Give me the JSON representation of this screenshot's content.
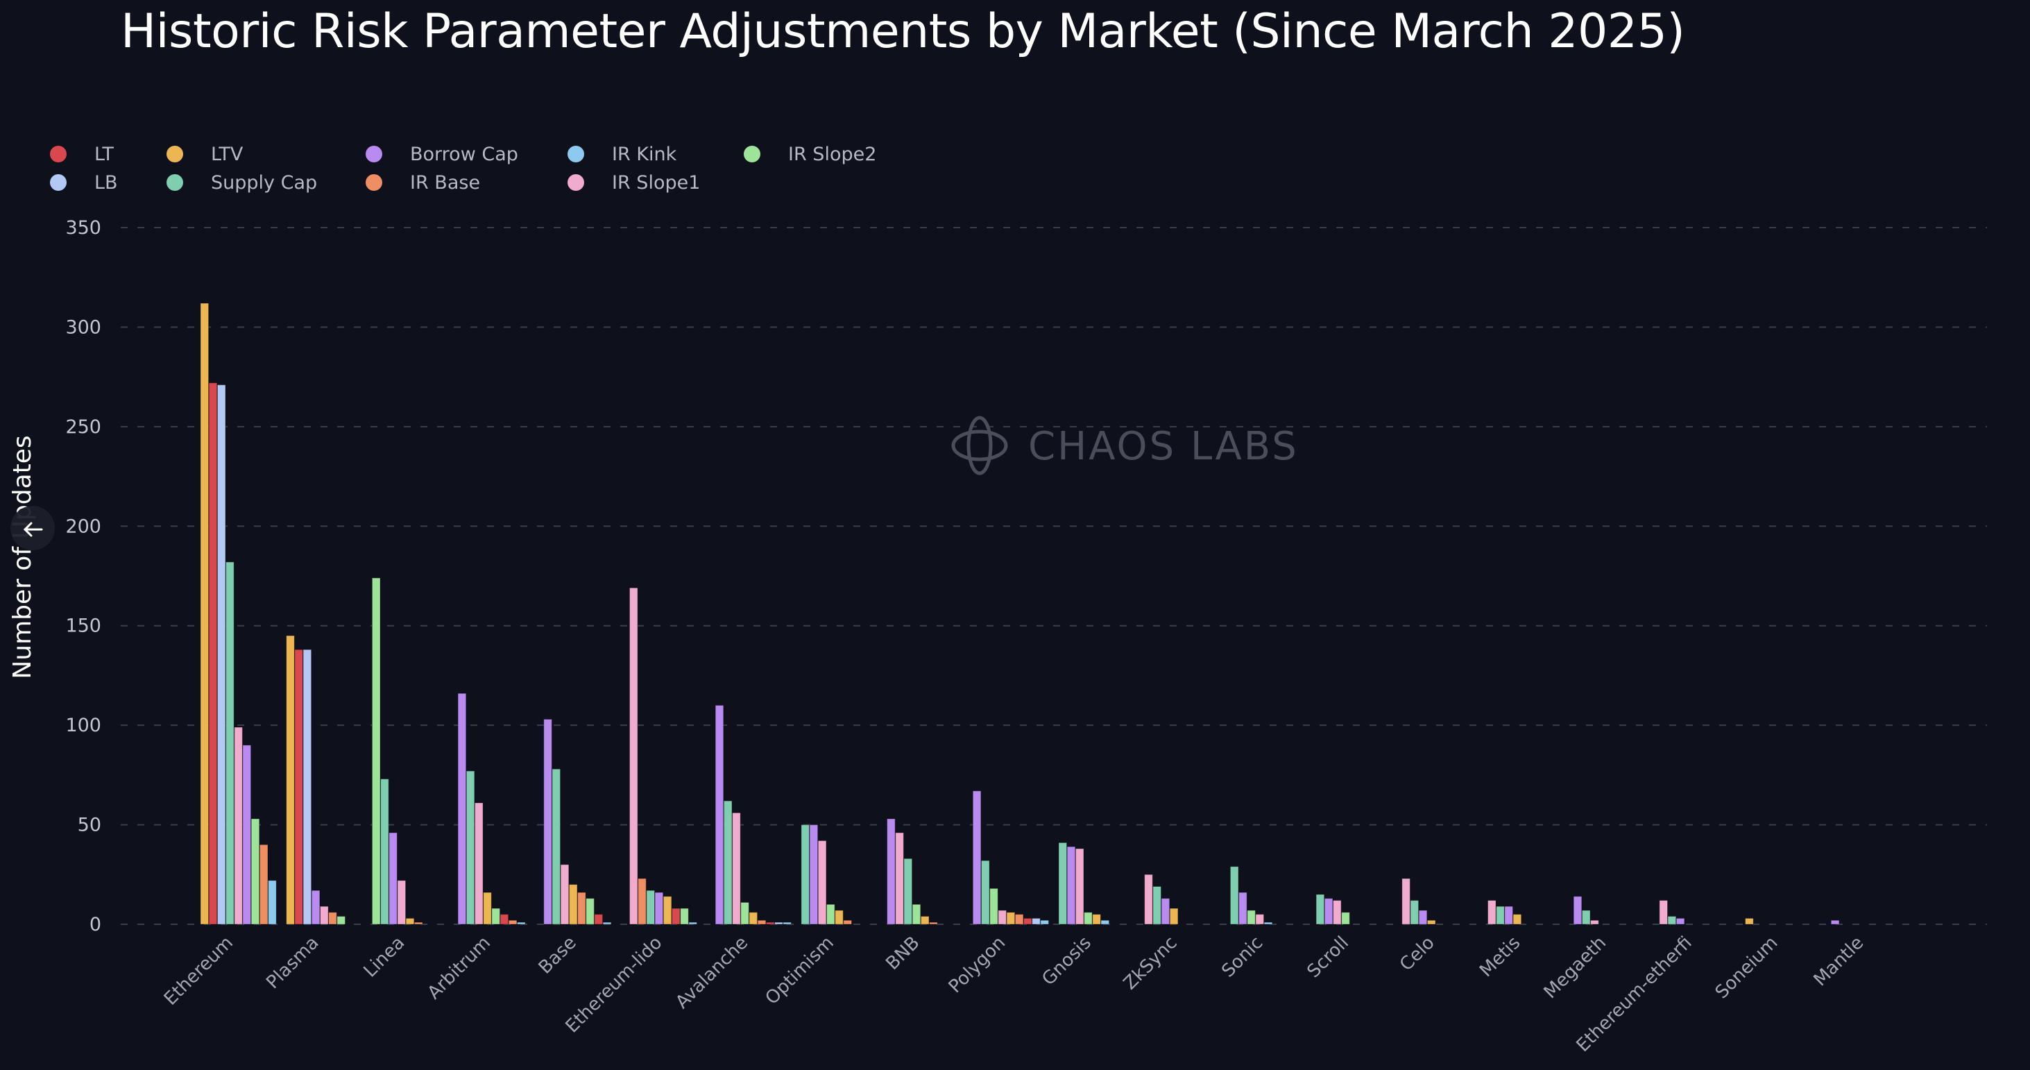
{
  "chart_data": {
    "type": "bar",
    "title": "Historic Risk Parameter Adjustments by Market (Since March 2025)",
    "xlabel": "",
    "ylabel": "Number of Updates",
    "ylim": [
      0,
      350
    ],
    "yticks": [
      0,
      50,
      100,
      150,
      200,
      250,
      300,
      350
    ],
    "grid": true,
    "legend_position": "top-left",
    "watermark": "CHAOS LABS",
    "categories": [
      "Ethereum",
      "Plasma",
      "Linea",
      "Arbitrum",
      "Base",
      "Ethereum-lido",
      "Avalanche",
      "Optimism",
      "BNB",
      "Polygon",
      "Gnosis",
      "ZkSync",
      "Sonic",
      "Scroll",
      "Celo",
      "Metis",
      "Megaeth",
      "Ethereum-etherfi",
      "Soneium",
      "Mantle"
    ],
    "series": [
      {
        "name": "LT",
        "color": "#d9474f",
        "values": [
          272,
          138,
          0,
          5,
          5,
          8,
          1,
          0,
          0,
          3,
          0,
          0,
          0,
          0,
          0,
          0,
          0,
          0,
          0,
          0
        ]
      },
      {
        "name": "LB",
        "color": "#b3c8f5",
        "values": [
          271,
          138,
          0,
          0,
          0,
          0,
          1,
          0,
          0,
          3,
          0,
          0,
          0,
          0,
          0,
          0,
          0,
          0,
          0,
          0
        ]
      },
      {
        "name": "LTV",
        "color": "#ecb753",
        "values": [
          312,
          145,
          3,
          16,
          20,
          14,
          6,
          7,
          4,
          6,
          5,
          8,
          0,
          0,
          2,
          5,
          0,
          0,
          3,
          0
        ]
      },
      {
        "name": "Supply Cap",
        "color": "#7fceb0",
        "values": [
          182,
          0,
          73,
          77,
          78,
          17,
          62,
          50,
          33,
          32,
          41,
          19,
          29,
          15,
          12,
          9,
          7,
          4,
          0,
          0
        ]
      },
      {
        "name": "Borrow Cap",
        "color": "#b98af0",
        "values": [
          90,
          17,
          46,
          116,
          103,
          16,
          110,
          50,
          53,
          67,
          39,
          13,
          16,
          13,
          7,
          9,
          14,
          3,
          0,
          2
        ]
      },
      {
        "name": "IR Base",
        "color": "#ef8e63",
        "values": [
          40,
          6,
          1,
          2,
          16,
          23,
          2,
          2,
          1,
          5,
          0,
          0,
          0,
          0,
          0,
          0,
          0,
          0,
          0,
          0
        ]
      },
      {
        "name": "IR Kink",
        "color": "#8ecaf0",
        "values": [
          22,
          0,
          0,
          1,
          1,
          1,
          1,
          0,
          0,
          2,
          2,
          0,
          1,
          0,
          0,
          0,
          0,
          0,
          0,
          0
        ]
      },
      {
        "name": "IR Slope1",
        "color": "#f0abcd",
        "values": [
          99,
          9,
          22,
          61,
          30,
          169,
          56,
          42,
          46,
          7,
          38,
          25,
          5,
          12,
          23,
          12,
          2,
          12,
          0,
          0
        ]
      },
      {
        "name": "IR Slope2",
        "color": "#9ee39a",
        "values": [
          53,
          4,
          174,
          8,
          13,
          8,
          11,
          10,
          10,
          18,
          6,
          0,
          7,
          6,
          0,
          0,
          0,
          0,
          0,
          0
        ]
      }
    ]
  },
  "overlay": {
    "back_icon": "arrow-left-icon"
  }
}
